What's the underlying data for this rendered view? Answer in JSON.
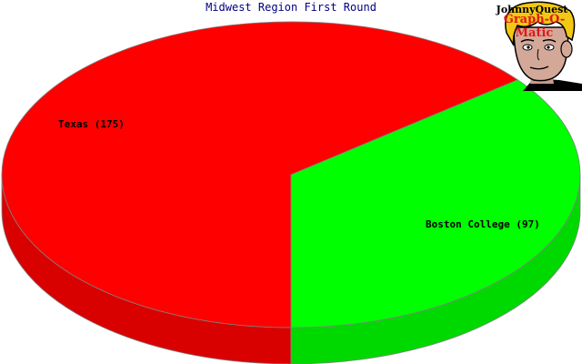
{
  "chart_data": {
    "type": "pie",
    "title": "Midwest Region First Round",
    "slices": [
      {
        "label": "Texas (175)",
        "value": 175,
        "color": "#ff0000"
      },
      {
        "label": "Boston College (97)",
        "value": 97,
        "color": "#00ff00"
      }
    ],
    "style": "3d"
  },
  "logo": {
    "line1": "JohnnyQuest",
    "line2": "Graph-O-Matic"
  },
  "colors": {
    "title": "#000080",
    "edge": "#808080"
  }
}
